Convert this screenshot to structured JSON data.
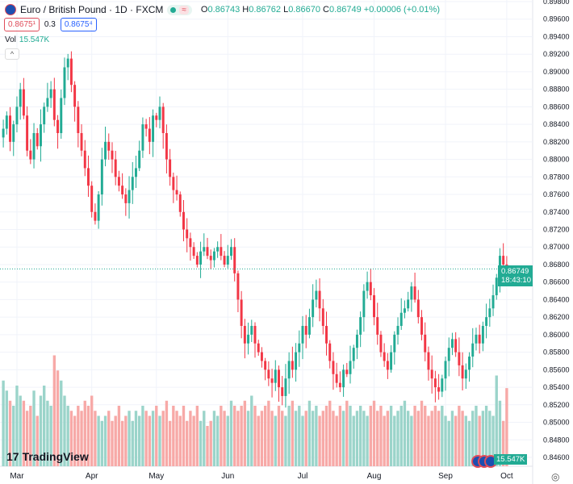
{
  "header": {
    "title": "Euro / British Pound · 1D · FXCM",
    "O": "0.86743",
    "H": "0.86762",
    "L": "0.86670",
    "C": "0.86749",
    "change": "+0.00006 (+0.01%)",
    "eq": "≈"
  },
  "quotes": {
    "sell": "0.8675¹",
    "spread": "0.3",
    "buy": "0.8675⁴"
  },
  "volume": {
    "label": "Vol",
    "value": "15.547K"
  },
  "collapse_icon": "^",
  "price_tag": {
    "price": "0.86749",
    "countdown": "18:43:10"
  },
  "logo": "TradingView",
  "colors": {
    "up": "#22ab94",
    "down": "#f23645",
    "up_vol": "#9bd4ca",
    "down_vol": "#f7a9a7"
  },
  "chart_data": {
    "type": "candlestick",
    "price_ticks": [
      "0.89800",
      "0.89600",
      "0.89400",
      "0.89200",
      "0.89000",
      "0.88800",
      "0.88600",
      "0.88400",
      "0.88200",
      "0.88000",
      "0.87800",
      "0.87600",
      "0.87400",
      "0.87200",
      "0.87000",
      "0.86800",
      "0.86600",
      "0.86400",
      "0.86200",
      "0.86000",
      "0.85800",
      "0.85600",
      "0.85400",
      "0.85200",
      "0.85000",
      "0.84800",
      "0.84600"
    ],
    "ylim": [
      0.846,
      0.898
    ],
    "months": [
      {
        "label": "Mar",
        "index": 4
      },
      {
        "label": "Apr",
        "index": 26
      },
      {
        "label": "May",
        "index": 45
      },
      {
        "label": "Jun",
        "index": 66
      },
      {
        "label": "Jul",
        "index": 88
      },
      {
        "label": "Aug",
        "index": 109
      },
      {
        "label": "Sep",
        "index": 130
      },
      {
        "label": "Oct",
        "index": 148
      }
    ],
    "first_open": 0.8825,
    "closes": [
      0.8835,
      0.885,
      0.882,
      0.884,
      0.886,
      0.888,
      0.885,
      0.881,
      0.88,
      0.883,
      0.8815,
      0.884,
      0.886,
      0.887,
      0.888,
      0.8845,
      0.883,
      0.887,
      0.8905,
      0.8915,
      0.8885,
      0.886,
      0.883,
      0.881,
      0.879,
      0.877,
      0.874,
      0.873,
      0.876,
      0.88,
      0.882,
      0.881,
      0.88,
      0.878,
      0.877,
      0.876,
      0.875,
      0.8765,
      0.878,
      0.879,
      0.881,
      0.884,
      0.8835,
      0.882,
      0.885,
      0.8845,
      0.886,
      0.883,
      0.88,
      0.878,
      0.8765,
      0.876,
      0.874,
      0.872,
      0.871,
      0.87,
      0.869,
      0.868,
      0.8695,
      0.87,
      0.869,
      0.8685,
      0.8695,
      0.87,
      0.869,
      0.868,
      0.869,
      0.87,
      0.867,
      0.864,
      0.861,
      0.859,
      0.86,
      0.861,
      0.859,
      0.858,
      0.857,
      0.856,
      0.855,
      0.8545,
      0.856,
      0.854,
      0.853,
      0.855,
      0.857,
      0.856,
      0.858,
      0.859,
      0.861,
      0.86,
      0.862,
      0.864,
      0.865,
      0.863,
      0.861,
      0.859,
      0.857,
      0.8555,
      0.8545,
      0.854,
      0.856,
      0.8555,
      0.857,
      0.8585,
      0.86,
      0.862,
      0.865,
      0.866,
      0.8645,
      0.862,
      0.86,
      0.858,
      0.857,
      0.856,
      0.858,
      0.86,
      0.861,
      0.8625,
      0.863,
      0.864,
      0.8655,
      0.864,
      0.862,
      0.86,
      0.858,
      0.856,
      0.855,
      0.854,
      0.8535,
      0.855,
      0.857,
      0.8585,
      0.8595,
      0.858,
      0.8565,
      0.855,
      0.856,
      0.8575,
      0.859,
      0.86,
      0.859,
      0.861,
      0.862,
      0.863,
      0.8645,
      0.8665,
      0.869,
      0.868,
      0.8675
    ],
    "volumes_k": [
      17,
      15,
      13,
      12,
      16,
      14,
      13,
      11,
      12,
      15,
      10,
      14,
      16,
      13,
      12,
      22,
      19,
      17,
      14,
      12,
      11,
      10,
      12,
      11,
      13,
      12,
      14,
      11,
      10,
      9,
      10,
      11,
      9,
      10,
      12,
      9,
      10,
      11,
      9,
      11,
      10,
      12,
      11,
      10,
      11,
      12,
      10,
      11,
      13,
      9,
      12,
      11,
      10,
      12,
      9,
      11,
      10,
      12,
      9,
      11,
      8,
      9,
      11,
      10,
      12,
      11,
      10,
      13,
      12,
      11,
      12,
      13,
      11,
      14,
      12,
      10,
      11,
      12,
      13,
      11,
      10,
      12,
      11,
      10,
      12,
      13,
      11,
      12,
      10,
      11,
      13,
      11,
      12,
      10,
      11,
      12,
      13,
      11,
      10,
      12,
      11,
      13,
      12,
      10,
      11,
      12,
      11,
      10,
      12,
      13,
      11,
      12,
      10,
      11,
      12,
      10,
      11,
      12,
      13,
      11,
      10,
      12,
      11,
      13,
      12,
      10,
      11,
      12,
      11,
      12,
      10,
      9,
      11,
      10,
      12,
      11,
      10,
      9,
      11,
      12,
      10,
      11,
      12,
      11,
      10,
      18,
      13,
      9,
      15.5
    ]
  }
}
